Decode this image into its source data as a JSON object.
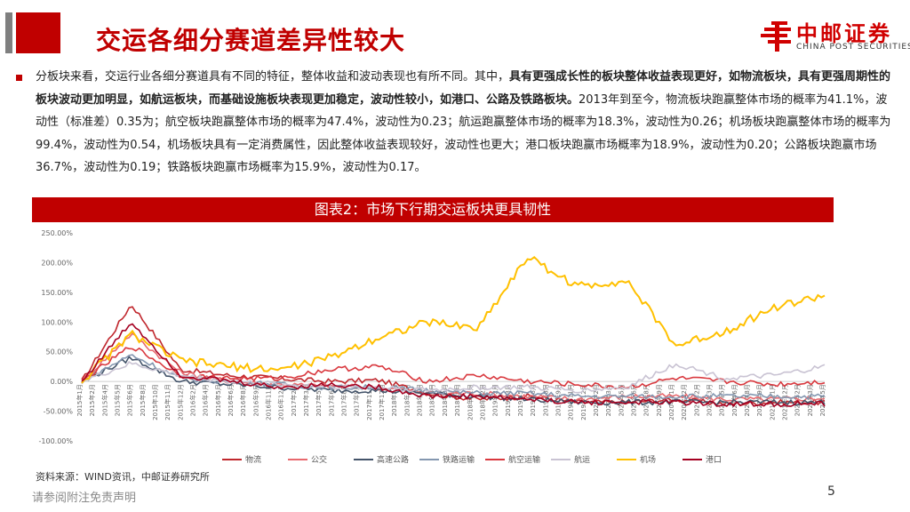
{
  "header": {
    "title": "交运各细分赛道差异性较大",
    "logo": {
      "cn": "中邮证券",
      "en": "CHINA POST SECURITIES"
    }
  },
  "paragraph": [
    {
      "text": "分板块来看，交运行业各细分赛道具有不同的特征，整体收益和波动表现也有所不同。其中，",
      "bold": false
    },
    {
      "text": "具有更强成长性的板块整体收益表现更好，如物流板块，具有更强周期性的板块波动更加明显，如航运板块，而基础设施板块表现更加稳定，波动性较小，如港口、公路及铁路板块。",
      "bold": true
    },
    {
      "text": "2013年到至今，物流板块跑赢整体市场的概率为41.1%，波动性（标准差）0.35为；航空板块跑赢整体市场的概率为47.4%，波动性为0.23；航运跑赢整体市场的概率为18.3%，波动性为0.26；机场板块跑赢整体市场的概率为99.4%，波动性为0.54，机场板块具有一定消费属性，因此整体收益表现较好，波动性也更大；港口板块跑赢市场概率为18.9%，波动性为0.20；公路板块跑赢市场36.7%，波动性为0.19；铁路板块跑赢市场概率为15.9%，波动性为0.17。",
      "bold": false
    }
  ],
  "figure": {
    "title": "图表2：市场下行期交运板块更具韧性"
  },
  "source": "资料来源：WIND资讯，中邮证券研究所",
  "footer": {
    "disclaimer": "请参阅附注免责声明",
    "page": "5"
  },
  "chart_data": {
    "type": "line",
    "title": "",
    "xlabel": "",
    "ylabel": "",
    "ylim": [
      -100,
      250
    ],
    "yticks": [
      "250.00%",
      "200.00%",
      "150.00%",
      "100.00%",
      "50.00%",
      "0.00%",
      "-50.00%",
      "-100.00%"
    ],
    "ytick_values": [
      250,
      200,
      150,
      100,
      50,
      0,
      -50,
      -100
    ],
    "x": [
      "2015/1",
      "2015/7",
      "2016/1",
      "2016/7",
      "2017/1",
      "2017/7",
      "2018/1",
      "2018/7",
      "2019/1",
      "2019/7",
      "2020/1",
      "2020/7",
      "2021/1",
      "2021/7",
      "2022/1",
      "2022/6"
    ],
    "x_tick_labels": [
      "2015年1月",
      "2015年2月",
      "2015年4月",
      "2015年5月",
      "2015年6月",
      "2015年8月",
      "2015年10月",
      "2015年11月",
      "2015年12月",
      "2016年2月",
      "2016年4月",
      "2016年5月",
      "2016年6月",
      "2016年8月",
      "2016年9月",
      "2016年11月",
      "2016年12月",
      "2017年2月",
      "2017年3月",
      "2017年5月",
      "2017年6月",
      "2017年8月",
      "2017年9月",
      "2017年11月",
      "2017年12月",
      "2018年2月",
      "2018年3月",
      "2018年5月",
      "2018年6月",
      "2018年8月",
      "2018年9月",
      "2018年11月",
      "2018年12月",
      "2019年2月",
      "2019年3月",
      "2019年5月",
      "2019年6月",
      "2019年8月",
      "2019年9月",
      "2019年11月",
      "2019年12月",
      "2020年2月",
      "2020年3月",
      "2020年5月",
      "2020年6月",
      "2020年8月",
      "2020年9月",
      "2020年11月",
      "2020年12月",
      "2021年2月",
      "2021年3月",
      "2021年5月",
      "2021年6月",
      "2021年8月",
      "2021年9月",
      "2021年11月",
      "2021年12月",
      "2022年2月",
      "2022年3月",
      "2022年5月"
    ],
    "legend_position": "bottom",
    "grid": false,
    "series": [
      {
        "name": "物流",
        "color": "#c0272d",
        "values": [
          0,
          130,
          20,
          10,
          5,
          0,
          2,
          -20,
          -30,
          -25,
          -35,
          -35,
          -30,
          -38,
          -35,
          -35
        ]
      },
      {
        "name": "公交",
        "color": "#e8696e",
        "values": [
          0,
          80,
          15,
          0,
          -5,
          -8,
          -10,
          -20,
          -20,
          -25,
          -30,
          -25,
          -25,
          -30,
          -30,
          -28
        ]
      },
      {
        "name": "高速公路",
        "color": "#44546a",
        "values": [
          0,
          40,
          0,
          -5,
          -10,
          -15,
          -15,
          -20,
          -25,
          -30,
          -35,
          -35,
          -35,
          -35,
          -35,
          -35
        ]
      },
      {
        "name": "铁路运输",
        "color": "#8497b0",
        "values": [
          0,
          45,
          5,
          0,
          -5,
          -10,
          -10,
          -15,
          -20,
          -20,
          -25,
          -25,
          -25,
          -25,
          -25,
          -25
        ]
      },
      {
        "name": "航空运输",
        "color": "#d9383e",
        "values": [
          0,
          60,
          10,
          5,
          5,
          20,
          25,
          0,
          10,
          0,
          -5,
          -10,
          5,
          0,
          -5,
          0
        ]
      },
      {
        "name": "航运",
        "color": "#c9c3d3",
        "values": [
          0,
          30,
          10,
          0,
          -5,
          -8,
          -10,
          -15,
          -10,
          -10,
          -15,
          -10,
          30,
          5,
          10,
          25
        ]
      },
      {
        "name": "机场",
        "color": "#ffc000",
        "values": [
          0,
          80,
          35,
          25,
          20,
          40,
          75,
          100,
          90,
          210,
          160,
          170,
          60,
          85,
          125,
          145
        ]
      },
      {
        "name": "港口",
        "color": "#a50021",
        "values": [
          0,
          100,
          10,
          0,
          -10,
          -5,
          -10,
          -25,
          -25,
          -30,
          -35,
          -35,
          -35,
          -38,
          -38,
          -38
        ]
      }
    ]
  }
}
